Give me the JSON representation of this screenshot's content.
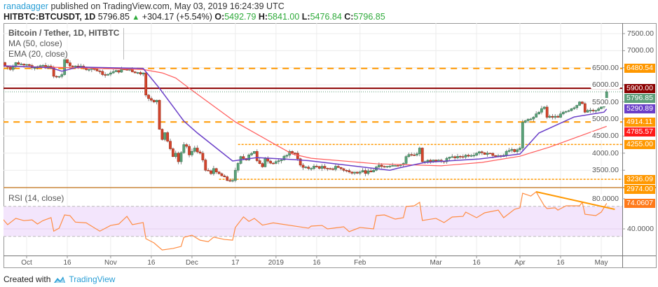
{
  "header": {
    "author": "ranadagger",
    "published_text": "published on TradingView.com, May 03, 2019 16:24:39 UTC",
    "symbol": "HITBTC:BTCUSDT, 1D",
    "last": "5796.85",
    "change": "+304.17 (+5.54%)",
    "open_label": "O:",
    "open": "5492.79",
    "high_label": "H:",
    "high": "5841.00",
    "low_label": "L:",
    "low": "5476.84",
    "close_label": "C:",
    "close": "5796.85",
    "direction_icon": "triangle-up-icon"
  },
  "legend": {
    "title": "Bitcoin / Tether, 1D, HITBTC",
    "ma": "MA (50, close)",
    "ema": "EMA (20, close)"
  },
  "rsi_title": "RSI (14, close)",
  "footer": {
    "created_with": "Created with",
    "brand": "TradingView"
  },
  "colors": {
    "up": "#5aa37a",
    "down": "#d4452c",
    "ma50": "#ff5a5a",
    "ema20": "#6a3fc8",
    "level": "#ff9800",
    "resistance": "#8b0000",
    "last_price": "#5e9e7a",
    "rsi": "#ff8c42",
    "rsi_band": "#f3e5fc"
  },
  "chart_data": [
    {
      "type": "candlestick",
      "title": "Bitcoin / Tether, 1D, HITBTC",
      "ylim": [
        2974,
        7700
      ],
      "y_ticks": [
        "7500.00",
        "7000.00",
        "6500.00",
        "6000.00",
        "5500.00",
        "5000.00",
        "4500.00",
        "4000.00",
        "3500.00"
      ],
      "x_ticks": [
        "Oct",
        "16",
        "Nov",
        "16",
        "Dec",
        "17",
        "2019",
        "16",
        "Feb",
        "Mar",
        "16",
        "Apr",
        "16",
        "May"
      ],
      "x_tick_dates": [
        "2018-10-01",
        "2018-10-16",
        "2018-11-01",
        "2018-11-16",
        "2018-12-01",
        "2018-12-17",
        "2019-01-01",
        "2019-01-16",
        "2019-02-01",
        "2019-03-01",
        "2019-03-16",
        "2019-04-01",
        "2019-04-16",
        "2019-05-01"
      ],
      "close_series": [
        [
          "2018-09-22",
          6650
        ],
        [
          "2018-09-25",
          6450
        ],
        [
          "2018-09-27",
          6650
        ],
        [
          "2018-09-30",
          6580
        ],
        [
          "2018-10-03",
          6500
        ],
        [
          "2018-10-06",
          6560
        ],
        [
          "2018-10-10",
          6500
        ],
        [
          "2018-10-11",
          6250
        ],
        [
          "2018-10-14",
          6300
        ],
        [
          "2018-10-15",
          6750
        ],
        [
          "2018-10-17",
          6550
        ],
        [
          "2018-10-22",
          6500
        ],
        [
          "2018-10-26",
          6450
        ],
        [
          "2018-10-29",
          6300
        ],
        [
          "2018-11-01",
          6350
        ],
        [
          "2018-11-06",
          6450
        ],
        [
          "2018-11-08",
          6450
        ],
        [
          "2018-11-10",
          6350
        ],
        [
          "2018-11-13",
          6350
        ],
        [
          "2018-11-14",
          5700
        ],
        [
          "2018-11-15",
          5600
        ],
        [
          "2018-11-16",
          5550
        ],
        [
          "2018-11-17",
          5500
        ],
        [
          "2018-11-18",
          5550
        ],
        [
          "2018-11-19",
          4700
        ],
        [
          "2018-11-20",
          4400
        ],
        [
          "2018-11-21",
          4600
        ],
        [
          "2018-11-22",
          4350
        ],
        [
          "2018-11-24",
          3900
        ],
        [
          "2018-11-25",
          4000
        ],
        [
          "2018-11-26",
          3750
        ],
        [
          "2018-11-28",
          4250
        ],
        [
          "2018-11-29",
          4200
        ],
        [
          "2018-11-30",
          3950
        ],
        [
          "2018-12-02",
          4150
        ],
        [
          "2018-12-04",
          4000
        ],
        [
          "2018-12-05",
          3800
        ],
        [
          "2018-12-06",
          3500
        ],
        [
          "2018-12-08",
          3400
        ],
        [
          "2018-12-09",
          3550
        ],
        [
          "2018-12-10",
          3450
        ],
        [
          "2018-12-11",
          3400
        ],
        [
          "2018-12-14",
          3200
        ],
        [
          "2018-12-15",
          3180
        ],
        [
          "2018-12-16",
          3200
        ],
        [
          "2018-12-17",
          3500
        ],
        [
          "2018-12-18",
          3700
        ],
        [
          "2018-12-19",
          3900
        ],
        [
          "2018-12-21",
          3800
        ],
        [
          "2018-12-22",
          3950
        ],
        [
          "2018-12-24",
          4050
        ],
        [
          "2018-12-25",
          3780
        ],
        [
          "2018-12-27",
          3600
        ],
        [
          "2018-12-28",
          3850
        ],
        [
          "2018-12-31",
          3700
        ],
        [
          "2019-01-03",
          3800
        ],
        [
          "2019-01-06",
          4050
        ],
        [
          "2019-01-08",
          4000
        ],
        [
          "2019-01-10",
          3650
        ],
        [
          "2019-01-13",
          3550
        ],
        [
          "2019-01-15",
          3620
        ],
        [
          "2019-01-20",
          3550
        ],
        [
          "2019-01-24",
          3580
        ],
        [
          "2019-01-28",
          3450
        ],
        [
          "2019-02-01",
          3450
        ],
        [
          "2019-02-05",
          3450
        ],
        [
          "2019-02-08",
          3650
        ],
        [
          "2019-02-12",
          3620
        ],
        [
          "2019-02-17",
          3700
        ],
        [
          "2019-02-18",
          3900
        ],
        [
          "2019-02-20",
          3950
        ],
        [
          "2019-02-22",
          3980
        ],
        [
          "2019-02-23",
          4150
        ],
        [
          "2019-02-24",
          3750
        ],
        [
          "2019-02-28",
          3800
        ],
        [
          "2019-03-04",
          3750
        ],
        [
          "2019-03-05",
          3850
        ],
        [
          "2019-03-10",
          3900
        ],
        [
          "2019-03-16",
          4000
        ],
        [
          "2019-03-20",
          4000
        ],
        [
          "2019-03-25",
          3900
        ],
        [
          "2019-03-27",
          4050
        ],
        [
          "2019-03-31",
          4100
        ],
        [
          "2019-04-01",
          4150
        ],
        [
          "2019-04-02",
          4900
        ],
        [
          "2019-04-03",
          4950
        ],
        [
          "2019-04-05",
          5000
        ],
        [
          "2019-04-07",
          5150
        ],
        [
          "2019-04-08",
          5200
        ],
        [
          "2019-04-10",
          5350
        ],
        [
          "2019-04-11",
          5050
        ],
        [
          "2019-04-13",
          5050
        ],
        [
          "2019-04-15",
          5050
        ],
        [
          "2019-04-17",
          5200
        ],
        [
          "2019-04-20",
          5300
        ],
        [
          "2019-04-22",
          5400
        ],
        [
          "2019-04-23",
          5500
        ],
        [
          "2019-04-24",
          5450
        ],
        [
          "2019-04-25",
          5200
        ],
        [
          "2019-04-26",
          5250
        ],
        [
          "2019-04-29",
          5250
        ],
        [
          "2019-04-30",
          5300
        ],
        [
          "2019-05-01",
          5350
        ],
        [
          "2019-05-02",
          5490
        ],
        [
          "2019-05-03",
          5796.85
        ]
      ],
      "ma50": [
        [
          "2018-09-22",
          6550
        ],
        [
          "2018-11-13",
          6450
        ],
        [
          "2018-11-20",
          6350
        ],
        [
          "2018-11-25",
          6200
        ],
        [
          "2018-11-30",
          5900
        ],
        [
          "2018-12-17",
          4914
        ],
        [
          "2018-12-30",
          4330
        ],
        [
          "2019-01-07",
          3975
        ],
        [
          "2019-01-14",
          3850
        ],
        [
          "2019-02-07",
          3690
        ],
        [
          "2019-03-03",
          3630
        ],
        [
          "2019-03-18",
          3730
        ],
        [
          "2019-04-01",
          3910
        ],
        [
          "2019-04-12",
          4180
        ],
        [
          "2019-05-03",
          4785.57
        ]
      ],
      "ema20": [
        [
          "2018-09-22",
          6560
        ],
        [
          "2018-10-10",
          6500
        ],
        [
          "2018-10-14",
          6400
        ],
        [
          "2018-10-20",
          6520
        ],
        [
          "2018-11-13",
          6480
        ],
        [
          "2018-11-19",
          5900
        ],
        [
          "2018-11-28",
          4940
        ],
        [
          "2018-12-03",
          4590
        ],
        [
          "2018-12-16",
          3770
        ],
        [
          "2018-12-25",
          3870
        ],
        [
          "2019-01-08",
          3810
        ],
        [
          "2019-01-13",
          3780
        ],
        [
          "2019-02-12",
          3500
        ],
        [
          "2019-02-15",
          3560
        ],
        [
          "2019-02-25",
          3730
        ],
        [
          "2019-03-17",
          3830
        ],
        [
          "2019-04-01",
          3975
        ],
        [
          "2019-04-08",
          4590
        ],
        [
          "2019-04-21",
          5060
        ],
        [
          "2019-05-02",
          5200
        ],
        [
          "2019-05-03",
          5290.89
        ]
      ],
      "levels": [
        {
          "price": 6480.54,
          "label": "6480.54",
          "style": "dashed",
          "from": "2018-09-22"
        },
        {
          "price": 5900.0,
          "label": "5900.00",
          "style": "solid",
          "from": "2018-09-22"
        },
        {
          "price": 4914.11,
          "label": "4914.11",
          "style": "dashed",
          "from": "2018-09-22"
        },
        {
          "price": 4255.0,
          "label": "4255.00",
          "style": "dotted",
          "from": "2018-12-18"
        },
        {
          "price": 3236.09,
          "label": "3236.09",
          "style": "dotted",
          "from": "2018-12-11"
        }
      ],
      "price_labels": [
        {
          "label": "6480.54",
          "kind": "level"
        },
        {
          "label": "5900.00",
          "kind": "resistance"
        },
        {
          "label": "5796.85",
          "kind": "last_price"
        },
        {
          "label": "5290.89",
          "kind": "ema20"
        },
        {
          "label": "4914.11",
          "kind": "level"
        },
        {
          "label": "4785.57",
          "kind": "ma50"
        },
        {
          "label": "4255.00",
          "kind": "level"
        },
        {
          "label": "3236.09",
          "kind": "level"
        },
        {
          "label": "2974.00",
          "kind": "level"
        }
      ]
    },
    {
      "type": "line",
      "title": "RSI (14, close)",
      "ylim": [
        5,
        95
      ],
      "y_ticks": [
        "80.0000",
        "40.0000"
      ],
      "bands": [
        30,
        70
      ],
      "current_label": "74.0607",
      "values": [
        [
          "2018-09-22",
          54
        ],
        [
          "2018-09-24",
          45.6
        ],
        [
          "2018-09-27",
          54
        ],
        [
          "2018-09-30",
          51
        ],
        [
          "2018-10-03",
          52
        ],
        [
          "2018-10-05",
          46.5
        ],
        [
          "2018-10-07",
          51
        ],
        [
          "2018-10-10",
          55
        ],
        [
          "2018-10-11",
          37
        ],
        [
          "2018-10-13",
          41
        ],
        [
          "2018-10-15",
          58.6
        ],
        [
          "2018-10-17",
          57.6
        ],
        [
          "2018-10-19",
          49
        ],
        [
          "2018-10-23",
          48
        ],
        [
          "2018-10-28",
          37
        ],
        [
          "2018-11-01",
          44.6
        ],
        [
          "2018-11-04",
          46.5
        ],
        [
          "2018-11-07",
          56.7
        ],
        [
          "2018-11-09",
          45.6
        ],
        [
          "2018-11-13",
          48.4
        ],
        [
          "2018-11-14",
          27
        ],
        [
          "2018-11-17",
          21.4
        ],
        [
          "2018-11-20",
          12
        ],
        [
          "2018-11-24",
          14
        ],
        [
          "2018-11-27",
          16.7
        ],
        [
          "2018-11-28",
          28.8
        ],
        [
          "2018-12-01",
          31.6
        ],
        [
          "2018-12-04",
          25
        ],
        [
          "2018-12-07",
          23
        ],
        [
          "2018-12-09",
          29
        ],
        [
          "2018-12-13",
          26
        ],
        [
          "2018-12-16",
          25
        ],
        [
          "2018-12-17",
          42
        ],
        [
          "2018-12-20",
          56
        ],
        [
          "2018-12-22",
          50
        ],
        [
          "2018-12-24",
          54
        ],
        [
          "2018-12-27",
          45
        ],
        [
          "2018-12-31",
          48
        ],
        [
          "2019-01-13",
          41
        ],
        [
          "2019-01-14",
          43.7
        ],
        [
          "2019-01-18",
          44.6
        ],
        [
          "2019-01-20",
          40
        ],
        [
          "2019-01-26",
          42.8
        ],
        [
          "2019-01-28",
          36.3
        ],
        [
          "2019-02-01",
          41.9
        ],
        [
          "2019-02-06",
          40
        ],
        [
          "2019-02-07",
          57.7
        ],
        [
          "2019-02-10",
          58.6
        ],
        [
          "2019-02-14",
          53
        ],
        [
          "2019-02-17",
          54.9
        ],
        [
          "2019-02-18",
          69.8
        ],
        [
          "2019-02-21",
          70.7
        ],
        [
          "2019-02-23",
          75.3
        ],
        [
          "2019-02-24",
          51.2
        ],
        [
          "2019-03-01",
          54
        ],
        [
          "2019-03-04",
          48.4
        ],
        [
          "2019-03-07",
          55.8
        ],
        [
          "2019-03-11",
          56.7
        ],
        [
          "2019-03-12",
          62.3
        ],
        [
          "2019-03-16",
          54.9
        ],
        [
          "2019-03-19",
          61.4
        ],
        [
          "2019-03-24",
          65
        ],
        [
          "2019-03-26",
          54.9
        ],
        [
          "2019-03-30",
          66
        ],
        [
          "2019-04-01",
          68
        ],
        [
          "2019-04-02",
          87.4
        ],
        [
          "2019-04-05",
          83.7
        ],
        [
          "2019-04-07",
          89.3
        ],
        [
          "2019-04-08",
          82.8
        ],
        [
          "2019-04-10",
          70.7
        ],
        [
          "2019-04-11",
          67
        ],
        [
          "2019-04-14",
          68
        ],
        [
          "2019-04-15",
          65
        ],
        [
          "2019-04-18",
          70.7
        ],
        [
          "2019-04-23",
          70.7
        ],
        [
          "2019-04-24",
          75.3
        ],
        [
          "2019-04-25",
          59.5
        ],
        [
          "2019-04-29",
          57.7
        ],
        [
          "2019-05-01",
          62.3
        ],
        [
          "2019-05-03",
          74.06
        ]
      ],
      "trendline": [
        [
          "2019-04-07",
          89.3
        ],
        [
          "2019-05-06",
          66
        ]
      ]
    }
  ]
}
